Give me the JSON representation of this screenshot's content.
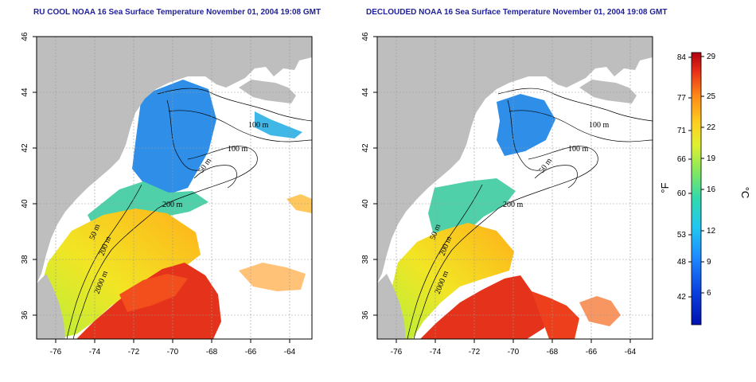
{
  "panels": [
    {
      "title": "RU COOL NOAA 16 Sea Surface Temperature November 01, 2004 19:08 GMT",
      "contour_labels": [
        "100 m",
        "100 m",
        "50 m",
        "200 m",
        "200 m",
        "50 m",
        "2000 m"
      ]
    },
    {
      "title": "DECLOUDED NOAA 16 Sea Surface Temperature November 01, 2004 19:08 GMT",
      "contour_labels": [
        "100 m",
        "100 m",
        "50 m",
        "200 m",
        "200 m",
        "50 m",
        "2000 m"
      ]
    }
  ],
  "axes": {
    "x_ticks": [
      "-76",
      "-74",
      "-72",
      "-70",
      "-68",
      "-66",
      "-64"
    ],
    "y_ticks": [
      "46",
      "44",
      "42",
      "40",
      "38",
      "36"
    ]
  },
  "colorbar": {
    "fahrenheit_ticks": [
      "84",
      "77",
      "71",
      "66",
      "60",
      "53",
      "48",
      "42"
    ],
    "celsius_ticks": [
      "29",
      "25",
      "22",
      "19",
      "16",
      "12",
      "9",
      "6"
    ],
    "fahrenheit_unit": "°F",
    "celsius_unit": "°C"
  },
  "colors": {
    "land": "#bebebe",
    "no_data": "#ffffff",
    "title": "#1f1f9a",
    "grid": "#9a9a9a"
  },
  "chart_data": {
    "type": "heatmap",
    "x_range": [
      -77,
      -63
    ],
    "y_range": [
      35,
      46
    ],
    "x_unit": "degrees longitude",
    "y_unit": "degrees latitude",
    "color_scale_celsius": [
      6,
      29
    ],
    "panels": 2,
    "grid": true
  }
}
